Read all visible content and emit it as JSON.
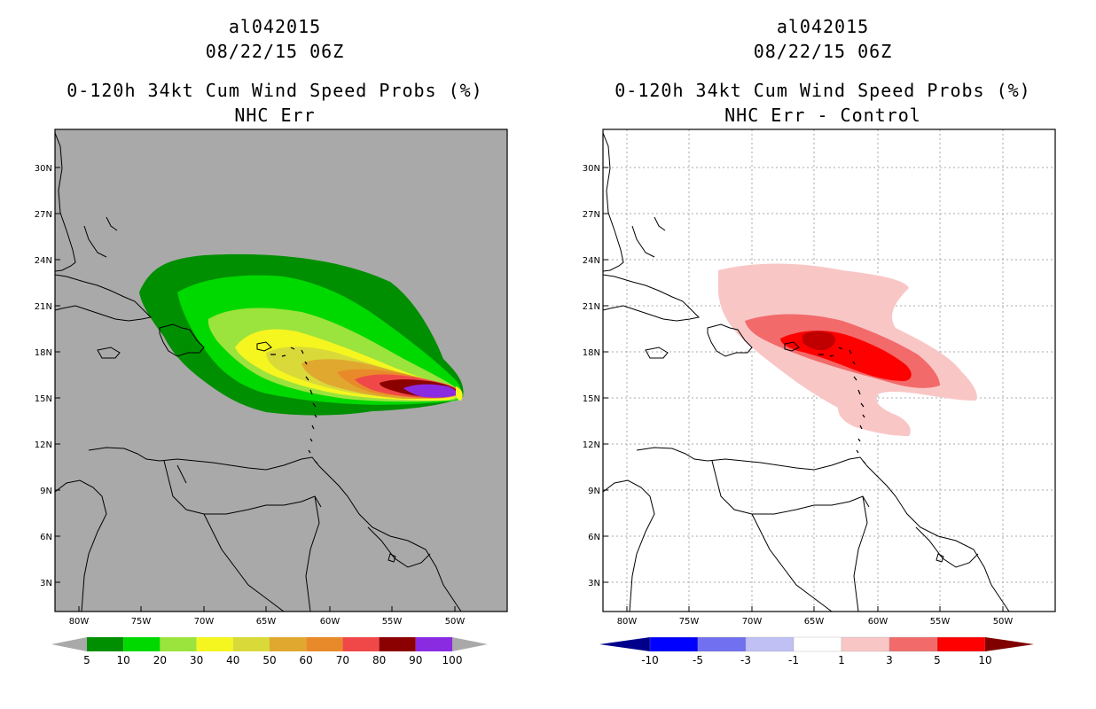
{
  "left_panel": {
    "storm_id": "al042015",
    "datetime": "08/22/15 06Z",
    "product": "0-120h 34kt Cum Wind Speed Probs (%)",
    "subtitle": "NHC Err",
    "lat_labels": [
      "30N",
      "27N",
      "24N",
      "21N",
      "18N",
      "15N",
      "12N",
      "9N",
      "6N",
      "3N"
    ],
    "lon_labels": [
      "80W",
      "75W",
      "70W",
      "65W",
      "60W",
      "55W",
      "50W"
    ],
    "legend_labels": [
      "5",
      "10",
      "20",
      "30",
      "40",
      "50",
      "60",
      "70",
      "80",
      "90",
      "100"
    ],
    "legend_colors": [
      "#008f00",
      "#00d900",
      "#9be33d",
      "#f5f51f",
      "#d9d93a",
      "#e0a82e",
      "#e88a2a",
      "#f04848",
      "#8b0000",
      "#8a2be2"
    ],
    "background_color": "#a9a9a9"
  },
  "right_panel": {
    "storm_id": "al042015",
    "datetime": "08/22/15 06Z",
    "product": "0-120h 34kt Cum Wind Speed Probs (%)",
    "subtitle": "NHC Err - Control",
    "lat_labels": [
      "30N",
      "27N",
      "24N",
      "21N",
      "18N",
      "15N",
      "12N",
      "9N",
      "6N",
      "3N"
    ],
    "lon_labels": [
      "80W",
      "75W",
      "70W",
      "65W",
      "60W",
      "55W",
      "50W"
    ],
    "legend_labels": [
      "-10",
      "-5",
      "-3",
      "-1",
      "1",
      "3",
      "5",
      "10"
    ],
    "legend_colors": [
      "#00008b",
      "#0000ff",
      "#7070f0",
      "#c0c0f5",
      "#ffffff",
      "#f9c6c6",
      "#f26a6a",
      "#ff0000",
      "#800000"
    ],
    "background_color": "#ffffff"
  }
}
